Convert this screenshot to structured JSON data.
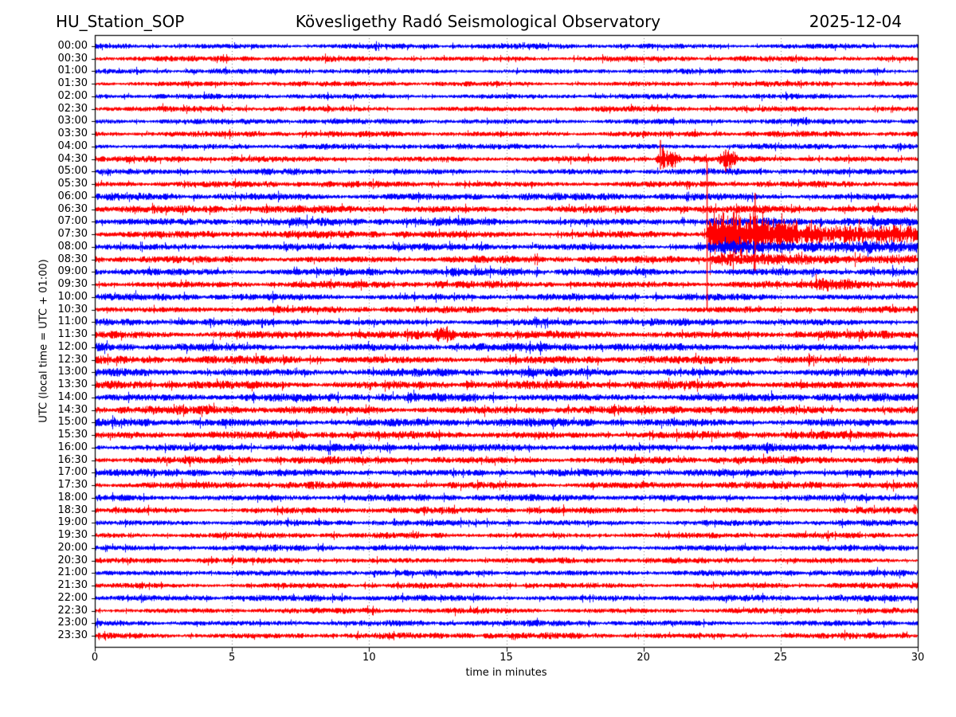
{
  "chart_data": {
    "type": "line",
    "subtype": "helicorder-day-plot",
    "station": "HU_Station_SOP",
    "observatory": "Kövesligethy Radó Seismological Observatory",
    "date": "2025-12-04",
    "xlabel": "time in minutes",
    "ylabel": "UTC (local time = UTC + 01:00)",
    "xlim": [
      0,
      30
    ],
    "x_ticks": [
      0,
      5,
      10,
      15,
      20,
      25,
      30
    ],
    "grid_minutes": [
      5,
      10,
      15,
      20,
      25
    ],
    "grid_style": "dotted-vertical",
    "minutes_per_line": 30,
    "colors": {
      "blue": "#0000ff",
      "red": "#ff0000",
      "grid": "#7a7a7a",
      "frame": "#000000",
      "background": "#ffffff",
      "text": "#000000"
    },
    "layout": {
      "plot_left": 119,
      "plot_top": 44,
      "plot_right": 1152,
      "plot_bottom": 812,
      "first_row_y": 58,
      "row_spacing": 15.745
    },
    "rows": [
      {
        "time": "00:00",
        "color": "blue",
        "amp": 2.2
      },
      {
        "time": "00:30",
        "color": "red",
        "amp": 2.2
      },
      {
        "time": "01:00",
        "color": "blue",
        "amp": 2.1
      },
      {
        "time": "01:30",
        "color": "red",
        "amp": 2.1
      },
      {
        "time": "02:00",
        "color": "blue",
        "amp": 2.1
      },
      {
        "time": "02:30",
        "color": "red",
        "amp": 2.2
      },
      {
        "time": "03:00",
        "color": "blue",
        "amp": 2.2
      },
      {
        "time": "03:30",
        "color": "red",
        "amp": 2.3
      },
      {
        "time": "04:00",
        "color": "blue",
        "amp": 2.3
      },
      {
        "time": "04:30",
        "color": "red",
        "amp": 2.4
      },
      {
        "time": "05:00",
        "color": "blue",
        "amp": 2.4
      },
      {
        "time": "05:30",
        "color": "red",
        "amp": 2.5
      },
      {
        "time": "06:00",
        "color": "blue",
        "amp": 2.9
      },
      {
        "time": "06:30",
        "color": "red",
        "amp": 3.0
      },
      {
        "time": "07:00",
        "color": "blue",
        "amp": 3.1
      },
      {
        "time": "07:30",
        "color": "red",
        "amp": 2.9
      },
      {
        "time": "08:00",
        "color": "blue",
        "amp": 2.8
      },
      {
        "time": "08:30",
        "color": "red",
        "amp": 2.8
      },
      {
        "time": "09:00",
        "color": "blue",
        "amp": 3.0
      },
      {
        "time": "09:30",
        "color": "red",
        "amp": 2.8
      },
      {
        "time": "10:00",
        "color": "blue",
        "amp": 2.7
      },
      {
        "time": "10:30",
        "color": "red",
        "amp": 2.6
      },
      {
        "time": "11:00",
        "color": "blue",
        "amp": 2.7
      },
      {
        "time": "11:30",
        "color": "red",
        "amp": 3.2
      },
      {
        "time": "12:00",
        "color": "blue",
        "amp": 3.2
      },
      {
        "time": "12:30",
        "color": "red",
        "amp": 3.1
      },
      {
        "time": "13:00",
        "color": "blue",
        "amp": 3.2
      },
      {
        "time": "13:30",
        "color": "red",
        "amp": 3.3
      },
      {
        "time": "14:00",
        "color": "blue",
        "amp": 3.2
      },
      {
        "time": "14:30",
        "color": "red",
        "amp": 3.3
      },
      {
        "time": "15:00",
        "color": "blue",
        "amp": 3.2
      },
      {
        "time": "15:30",
        "color": "red",
        "amp": 3.1
      },
      {
        "time": "16:00",
        "color": "blue",
        "amp": 3.0
      },
      {
        "time": "16:30",
        "color": "red",
        "amp": 2.9
      },
      {
        "time": "17:00",
        "color": "blue",
        "amp": 2.9
      },
      {
        "time": "17:30",
        "color": "red",
        "amp": 2.8
      },
      {
        "time": "18:00",
        "color": "blue",
        "amp": 2.7
      },
      {
        "time": "18:30",
        "color": "red",
        "amp": 2.6
      },
      {
        "time": "19:00",
        "color": "blue",
        "amp": 2.4
      },
      {
        "time": "19:30",
        "color": "red",
        "amp": 2.3
      },
      {
        "time": "20:00",
        "color": "blue",
        "amp": 2.4
      },
      {
        "time": "20:30",
        "color": "red",
        "amp": 2.3
      },
      {
        "time": "21:00",
        "color": "blue",
        "amp": 2.4
      },
      {
        "time": "21:30",
        "color": "red",
        "amp": 2.3
      },
      {
        "time": "22:00",
        "color": "blue",
        "amp": 2.5
      },
      {
        "time": "22:30",
        "color": "red",
        "amp": 2.3
      },
      {
        "time": "23:00",
        "color": "blue",
        "amp": 2.4
      },
      {
        "time": "23:30",
        "color": "red",
        "amp": 2.5
      }
    ],
    "events": [
      {
        "row": "04:30",
        "type": "spindle",
        "start": 20.4,
        "end": 21.35,
        "amp": 9
      },
      {
        "row": "04:30",
        "type": "spike",
        "minute": 20.62,
        "up": 24,
        "down": 13
      },
      {
        "row": "04:30",
        "type": "spindle",
        "start": 22.7,
        "end": 23.45,
        "amp": 7.5
      },
      {
        "row": "04:30",
        "type": "spike",
        "minute": 23.0,
        "up": 12,
        "down": 16
      },
      {
        "row": "07:30",
        "type": "envelope",
        "points": [
          [
            22.3,
            0
          ],
          [
            22.4,
            26
          ],
          [
            23.9,
            22
          ],
          [
            25.6,
            12
          ],
          [
            27.2,
            7
          ],
          [
            30,
            6.5
          ]
        ]
      },
      {
        "row": "07:30",
        "type": "spike",
        "minute": 22.32,
        "up": 95,
        "down": 95
      },
      {
        "row": "07:30",
        "type": "spike",
        "minute": 24.07,
        "up": 52,
        "down": 46
      },
      {
        "row": "08:00",
        "type": "envelope",
        "points": [
          [
            22.3,
            0
          ],
          [
            22.45,
            4.5
          ],
          [
            26,
            3.5
          ],
          [
            30,
            3
          ]
        ]
      },
      {
        "row": "08:30",
        "type": "envelope",
        "points": [
          [
            22.3,
            0
          ],
          [
            22.45,
            4.5
          ],
          [
            27,
            2.5
          ],
          [
            30,
            2
          ]
        ]
      },
      {
        "row": "09:30",
        "type": "spindle",
        "start": 25.7,
        "end": 28.3,
        "amp": 4.5
      },
      {
        "row": "11:30",
        "type": "spindle",
        "start": 12.35,
        "end": 13.15,
        "amp": 5
      }
    ]
  }
}
